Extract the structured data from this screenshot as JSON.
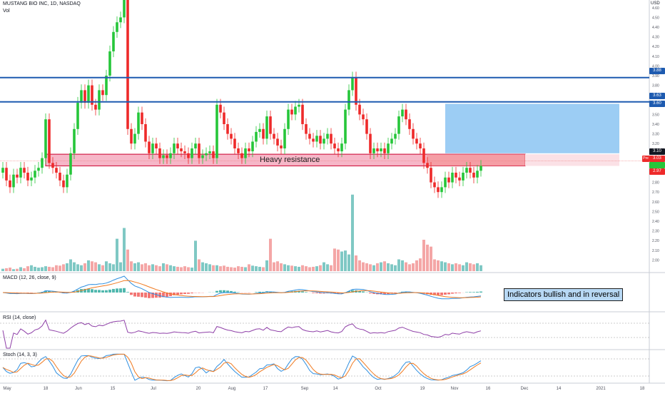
{
  "header": {
    "symbol": "MUSTANG BIO INC, 1D, NASDAQ",
    "volume_label": "Vol",
    "currency": "USD"
  },
  "indicators": {
    "macd_label": "MACD (12, 26, close, 9)",
    "rsi_label": "RSI (14, close)",
    "stoch_label": "Stoch (14, 3, 3)"
  },
  "annotations": {
    "resistance_text": "Heavy resistance",
    "note_text": "Indicators bullish and in reversal",
    "pre_label": "Pre"
  },
  "price_labels": {
    "line1": "3.88",
    "line2": "3.63",
    "line3": "3.60",
    "box_top": "3.10",
    "pre_price": "3.03",
    "last": "2.97"
  },
  "colors": {
    "up": "#26c63a",
    "down": "#ee2a2a",
    "vol_up": "#7fc8c4",
    "vol_down": "#f4a6a6",
    "hline": "#1e5bb0",
    "macd": "#2f8fe0",
    "signal": "#f07a20",
    "rsi": "#8e3fa7",
    "stoch_k": "#2f8fe0",
    "stoch_d": "#f07a20"
  },
  "chart_data": {
    "type": "candlestick",
    "price_axis": {
      "ylim": [
        1.9,
        4.65
      ],
      "ticks": [
        "2.00",
        "2.10",
        "2.20",
        "2.30",
        "2.40",
        "2.50",
        "2.60",
        "2.70",
        "2.80",
        "2.90",
        "3.00",
        "3.10",
        "3.20",
        "3.30",
        "3.40",
        "3.50",
        "3.60",
        "3.70",
        "3.80",
        "3.90",
        "4.00",
        "4.10",
        "4.20",
        "4.30",
        "4.40",
        "4.50",
        "4.60"
      ]
    },
    "time_axis": [
      "May",
      "18",
      "Jun",
      "15",
      "Jul",
      "20",
      "Aug",
      "17",
      "Sep",
      "14",
      "Oct",
      "19",
      "Nov",
      "16",
      "Dec",
      "14",
      "2021",
      "18"
    ],
    "horizontal_lines": [
      3.88,
      3.63
    ],
    "resistance_zone": [
      2.97,
      3.07
    ],
    "projection_box": [
      3.1,
      3.63
    ],
    "closes": [
      2.95,
      2.82,
      2.75,
      2.88,
      2.85,
      2.95,
      2.9,
      2.82,
      2.85,
      2.92,
      2.95,
      3.05,
      3.45,
      3.0,
      2.95,
      2.9,
      2.82,
      2.75,
      2.88,
      3.1,
      3.35,
      3.62,
      3.75,
      3.62,
      3.8,
      3.6,
      3.55,
      3.75,
      3.7,
      3.9,
      4.15,
      4.35,
      4.45,
      4.5,
      4.7,
      3.35,
      3.2,
      3.3,
      3.52,
      3.4,
      3.22,
      3.1,
      3.2,
      3.15,
      3.05,
      3.08,
      3.05,
      3.1,
      3.2,
      3.15,
      3.12,
      3.1,
      3.05,
      3.15,
      3.2,
      3.05,
      3.08,
      3.1,
      3.12,
      3.05,
      3.6,
      3.52,
      3.4,
      3.3,
      3.25,
      3.15,
      3.1,
      3.05,
      3.15,
      3.12,
      3.22,
      3.32,
      3.35,
      3.25,
      3.48,
      3.3,
      3.25,
      3.18,
      3.15,
      3.35,
      3.55,
      3.5,
      3.58,
      3.6,
      3.4,
      3.3,
      3.25,
      3.22,
      3.28,
      3.2,
      3.25,
      3.3,
      3.2,
      3.15,
      3.12,
      3.2,
      3.55,
      3.75,
      3.88,
      3.6,
      3.5,
      3.45,
      3.3,
      3.1,
      3.15,
      3.12,
      3.15,
      3.1,
      3.2,
      3.25,
      3.3,
      3.48,
      3.55,
      3.45,
      3.35,
      3.25,
      3.2,
      3.15,
      3.0,
      2.95,
      2.8,
      2.75,
      2.7,
      2.75,
      2.85,
      2.8,
      2.9,
      2.85,
      2.82,
      2.9,
      2.95,
      2.9,
      2.85,
      2.92,
      2.97
    ],
    "volumes": [
      0.12,
      0.15,
      0.18,
      0.1,
      0.12,
      0.2,
      0.15,
      0.25,
      0.3,
      0.22,
      0.18,
      0.2,
      0.25,
      0.22,
      0.2,
      0.3,
      0.28,
      0.35,
      0.4,
      0.6,
      0.45,
      0.35,
      0.3,
      0.4,
      0.55,
      0.5,
      0.45,
      0.35,
      0.3,
      0.5,
      0.4,
      0.35,
      1.65,
      0.45,
      2.2,
      1.1,
      0.5,
      0.4,
      0.45,
      0.35,
      0.4,
      0.3,
      0.35,
      0.3,
      0.25,
      0.4,
      0.35,
      0.3,
      0.25,
      0.22,
      0.2,
      0.25,
      0.2,
      0.18,
      1.55,
      0.6,
      0.45,
      0.4,
      0.35,
      0.3,
      0.3,
      0.25,
      0.28,
      0.22,
      0.2,
      0.18,
      0.25,
      0.22,
      0.2,
      0.35,
      0.28,
      0.25,
      0.22,
      0.2,
      0.55,
      1.65,
      0.45,
      0.5,
      0.4,
      0.35,
      0.3,
      0.28,
      0.25,
      0.22,
      0.3,
      0.25,
      0.2,
      0.22,
      0.25,
      0.3,
      0.45,
      0.35,
      0.3,
      1.15,
      1.1,
      1.0,
      1.05,
      0.85,
      3.9,
      0.8,
      0.55,
      0.45,
      0.4,
      0.35,
      0.3,
      0.4,
      0.45,
      0.5,
      0.4,
      0.35,
      0.3,
      0.6,
      0.55,
      0.45,
      0.35,
      0.4,
      0.55,
      0.65,
      1.6,
      1.35,
      1.25,
      0.6,
      0.55,
      0.5,
      0.45,
      0.4,
      0.35,
      0.4,
      0.35,
      0.3,
      0.45,
      0.4,
      0.35,
      0.4,
      0.3
    ]
  }
}
